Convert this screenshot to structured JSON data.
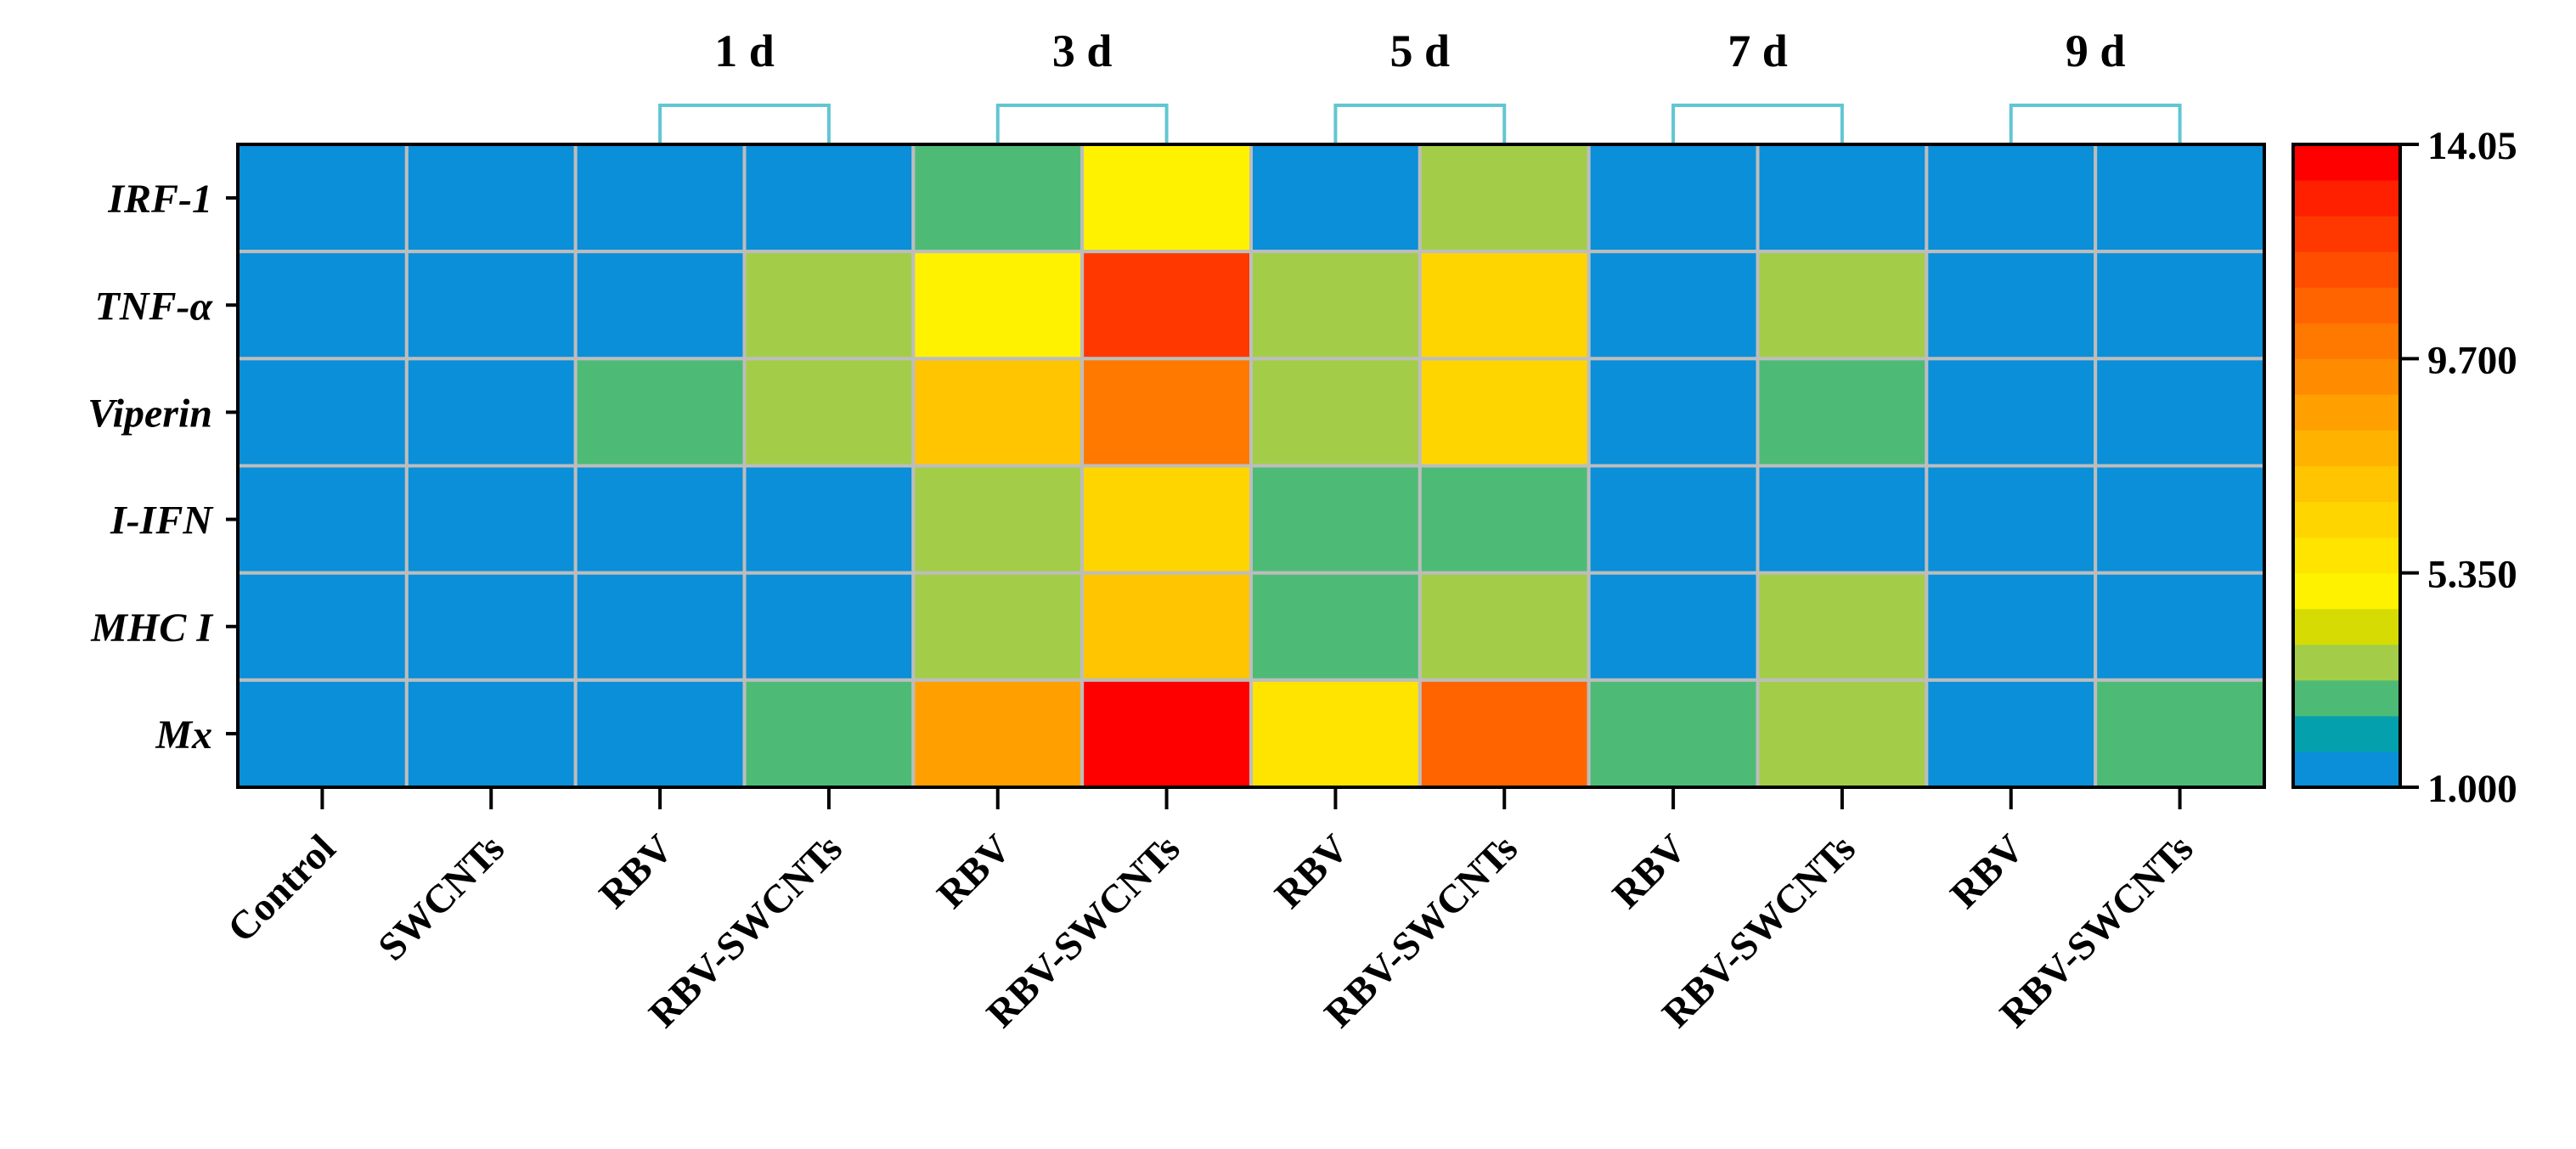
{
  "chart_data": {
    "type": "heatmap",
    "title": "",
    "rows": [
      "IRF-1",
      "TNF-α",
      "Viperin",
      "I-IFN",
      "MHC I",
      "Mx"
    ],
    "columns": [
      "Control",
      "SWCNTs",
      "RBV",
      "RBV-SWCNTs",
      "RBV",
      "RBV-SWCNTs",
      "RBV",
      "RBV-SWCNTs",
      "RBV",
      "RBV-SWCNTs",
      "RBV",
      "RBV-SWCNTs"
    ],
    "groups": [
      {
        "label": "1 d",
        "columns": [
          2,
          3
        ]
      },
      {
        "label": "3 d",
        "columns": [
          4,
          5
        ]
      },
      {
        "label": "5 d",
        "columns": [
          6,
          7
        ]
      },
      {
        "label": "7 d",
        "columns": [
          8,
          9
        ]
      },
      {
        "label": "9 d",
        "columns": [
          10,
          11
        ]
      }
    ],
    "values": [
      [
        1.0,
        1.0,
        1.0,
        1.0,
        2.3,
        4.6,
        1.0,
        3.1,
        1.0,
        1.0,
        1.0,
        1.0
      ],
      [
        1.0,
        1.0,
        1.0,
        3.1,
        4.6,
        12.2,
        3.6,
        6.0,
        1.0,
        3.6,
        1.0,
        1.0
      ],
      [
        1.0,
        1.0,
        2.3,
        3.6,
        7.5,
        10.0,
        3.6,
        6.0,
        1.0,
        2.3,
        1.0,
        1.0
      ],
      [
        1.0,
        1.0,
        1.0,
        1.0,
        3.6,
        6.0,
        2.3,
        2.3,
        1.0,
        1.0,
        1.0,
        1.0
      ],
      [
        1.0,
        1.0,
        1.0,
        1.0,
        3.6,
        7.2,
        2.3,
        3.6,
        1.0,
        3.6,
        1.0,
        1.0
      ],
      [
        1.0,
        1.0,
        1.0,
        2.3,
        8.6,
        14.05,
        5.8,
        10.6,
        2.3,
        3.6,
        1.0,
        2.3
      ]
    ],
    "colorbar": {
      "min": 1.0,
      "max": 14.05,
      "tick_labels": [
        "1.000",
        "5.350",
        "9.700",
        "14.05"
      ],
      "tick_values": [
        1.0,
        5.35,
        9.7,
        14.05
      ],
      "colors": [
        "#0a8fd8",
        "#05a0ae",
        "#4dbb76",
        "#a3cd48",
        "#d6dc03",
        "#fff200",
        "#ffe400",
        "#ffd500",
        "#ffc500",
        "#ffb300",
        "#ffa000",
        "#ff8c00",
        "#ff7800",
        "#ff6400",
        "#ff4e00",
        "#ff3800",
        "#ff2000",
        "#ff0000"
      ]
    },
    "grid": true,
    "colors": {
      "bracket": "#62c6d2",
      "gridline": "#bdbdbd",
      "axis": "#000000"
    }
  }
}
